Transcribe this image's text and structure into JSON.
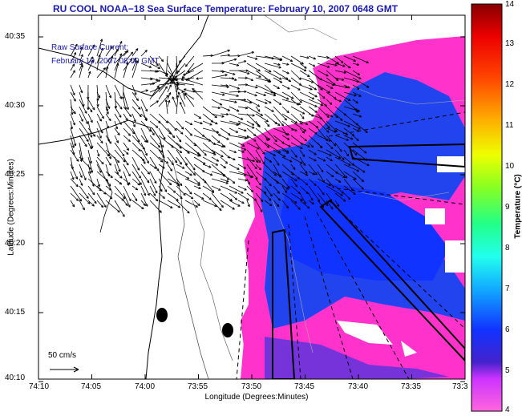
{
  "title": "RU COOL   NOAA−18  Sea Surface Temperature:  February 10, 2007 0648 GMT",
  "legend": {
    "line1": "Raw Surface Current:",
    "line2": "February 10, 2007 08:00 GMT"
  },
  "axes": {
    "xlabel": "Longitude (Degrees:Minutes)",
    "ylabel": "Latitude (Degrees:Minutes)",
    "xticks": [
      "74:10",
      "74:05",
      "74:00",
      "73:55",
      "73:50",
      "73:45",
      "73:40",
      "73:35",
      "73:3"
    ],
    "yticks": [
      "40:35",
      "40:30",
      "40:25",
      "40:20",
      "40:15",
      "40:10"
    ]
  },
  "colorbar": {
    "label": "Temperature (°C)",
    "ticks": [
      "14",
      "13",
      "12",
      "11",
      "10",
      "9",
      "8",
      "7",
      "6",
      "5",
      "4"
    ]
  },
  "scale": {
    "label": "50 cm/s"
  },
  "colors": {
    "title": "#1a1ab8",
    "magenta": "#ff33cc",
    "blue": "#2244ee",
    "coast": "#000000"
  }
}
